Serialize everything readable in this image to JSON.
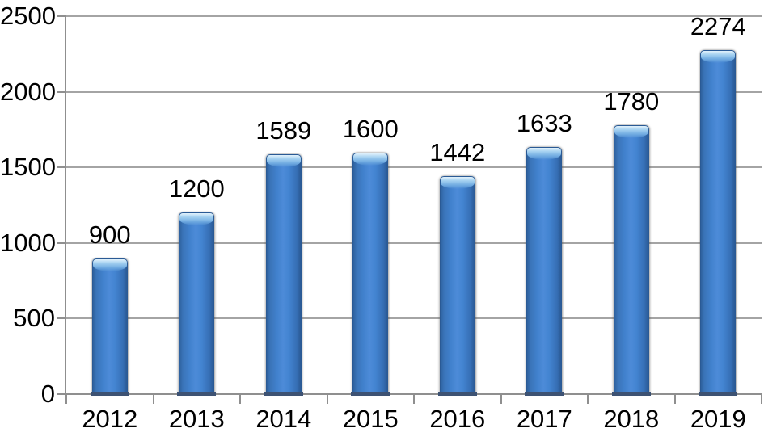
{
  "chart_data": {
    "type": "bar",
    "title": "",
    "xlabel": "",
    "ylabel": "",
    "categories": [
      "2012",
      "2013",
      "2014",
      "2015",
      "2016",
      "2017",
      "2018",
      "2019"
    ],
    "values": [
      900,
      1200,
      1589,
      1600,
      1442,
      1633,
      1780,
      2274
    ],
    "value_labels": [
      "900",
      "1200",
      "1589",
      "1600",
      "1442",
      "1633",
      "1780",
      "2274"
    ],
    "ylim": [
      0,
      2500
    ],
    "yticks": [
      0,
      500,
      1000,
      1500,
      2000,
      2500
    ],
    "ytick_labels": [
      "0",
      "500",
      "1000",
      "1500",
      "2000",
      "2500"
    ],
    "grid": true,
    "legend": false,
    "legend_position": "none",
    "colors": {
      "bar_fill": "#3f7ac4",
      "bar_edge": "#2a5a95",
      "bar_highlight": "#a6d2f1",
      "bar_base_shadow": "#3d5273",
      "gridline": "#a4a4a4",
      "axis": "#8f8f8f",
      "text": "#000000",
      "background": "#ffffff"
    }
  }
}
